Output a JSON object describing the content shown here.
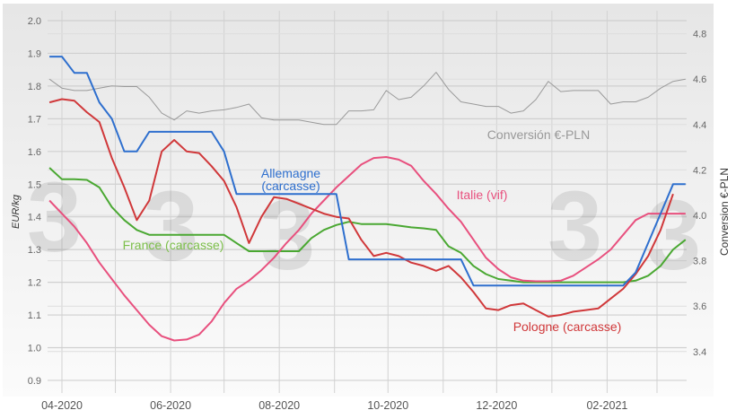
{
  "chart_data": {
    "type": "line",
    "x_tick_labels": [
      "04-2020",
      "06-2020",
      "08-2020",
      "10-2020",
      "12-2020",
      "02-2021"
    ],
    "x_tick_dates": [
      "2020-04-01",
      "2020-06-01",
      "2020-08-01",
      "2020-10-01",
      "2020-12-01",
      "2021-02-01"
    ],
    "y_left": {
      "label": "EUR/kg",
      "ticks": [
        "0.9",
        "1.0",
        "1.1",
        "1.2",
        "1.3",
        "1.4",
        "1.5",
        "1.6",
        "1.7",
        "1.8",
        "1.9",
        "2.0"
      ],
      "ylim": [
        0.86,
        2.03
      ]
    },
    "y_right": {
      "label": "Conversion €-PLN",
      "ticks": [
        "3.4",
        "3.6",
        "3.8",
        "4.0",
        "4.2",
        "4.4",
        "4.6",
        "4.8"
      ],
      "ylim": [
        3.22,
        4.9
      ]
    },
    "grid": true,
    "x": [
      "2020-03-25",
      "2020-04-01",
      "2020-04-08",
      "2020-04-15",
      "2020-04-22",
      "2020-04-29",
      "2020-05-06",
      "2020-05-13",
      "2020-05-20",
      "2020-05-27",
      "2020-06-03",
      "2020-06-10",
      "2020-06-17",
      "2020-06-24",
      "2020-07-01",
      "2020-07-08",
      "2020-07-15",
      "2020-07-22",
      "2020-07-29",
      "2020-08-05",
      "2020-08-12",
      "2020-08-19",
      "2020-08-26",
      "2020-09-02",
      "2020-09-09",
      "2020-09-16",
      "2020-09-23",
      "2020-09-30",
      "2020-10-07",
      "2020-10-14",
      "2020-10-21",
      "2020-10-28",
      "2020-11-04",
      "2020-11-11",
      "2020-11-18",
      "2020-11-25",
      "2020-12-02",
      "2020-12-09",
      "2020-12-16",
      "2020-12-23",
      "2020-12-30",
      "2021-01-06",
      "2021-01-13",
      "2021-01-20",
      "2021-01-27",
      "2021-02-03",
      "2021-02-10",
      "2021-02-17",
      "2021-02-24",
      "2021-03-03",
      "2021-03-10",
      "2021-03-17"
    ],
    "series": [
      {
        "name": "Conversión €-PLN",
        "axis": "right",
        "color": "#9a9a9a",
        "values": [
          4.6,
          4.56,
          4.55,
          4.55,
          4.56,
          4.57,
          4.567,
          4.567,
          4.52,
          4.45,
          4.42,
          4.46,
          4.45,
          4.46,
          4.465,
          4.475,
          4.49,
          4.43,
          4.42,
          4.42,
          4.42,
          4.41,
          4.4,
          4.4,
          4.46,
          4.46,
          4.465,
          4.55,
          4.51,
          4.52,
          4.57,
          4.63,
          4.555,
          4.5,
          4.49,
          4.48,
          4.48,
          4.45,
          4.46,
          4.51,
          4.59,
          4.545,
          4.55,
          4.55,
          4.55,
          4.49,
          4.5,
          4.5,
          4.52,
          4.56,
          4.59,
          4.6
        ]
      },
      {
        "name": "France (carcasse)",
        "axis": "left",
        "color": "#4aa832",
        "values": [
          1.55,
          1.515,
          1.515,
          1.513,
          1.49,
          1.43,
          1.39,
          1.36,
          1.345,
          1.345,
          1.345,
          1.345,
          1.345,
          1.345,
          1.345,
          1.32,
          1.295,
          1.295,
          1.295,
          1.295,
          1.295,
          1.335,
          1.36,
          1.375,
          1.385,
          1.378,
          1.378,
          1.378,
          1.373,
          1.368,
          1.365,
          1.36,
          1.31,
          1.29,
          1.25,
          1.225,
          1.21,
          1.205,
          1.2,
          1.2,
          1.2,
          1.2,
          1.2,
          1.2,
          1.2,
          1.2,
          1.2,
          1.205,
          1.22,
          1.25,
          1.3,
          1.33
        ]
      },
      {
        "name": "Italie (vif)",
        "axis": "left",
        "color": "#e8507e",
        "values": [
          1.45,
          1.41,
          1.37,
          1.32,
          1.26,
          1.21,
          1.16,
          1.115,
          1.07,
          1.035,
          1.022,
          1.025,
          1.04,
          1.08,
          1.136,
          1.18,
          1.205,
          1.237,
          1.275,
          1.32,
          1.36,
          1.41,
          1.45,
          1.49,
          1.525,
          1.56,
          1.58,
          1.583,
          1.575,
          1.556,
          1.51,
          1.47,
          1.425,
          1.385,
          1.33,
          1.275,
          1.24,
          1.215,
          1.205,
          1.203,
          1.203,
          1.205,
          1.22,
          1.245,
          1.27,
          1.3,
          1.345,
          1.39,
          1.41,
          1.41,
          1.41,
          1.41
        ]
      },
      {
        "name": "Pologne (carcasse)",
        "axis": "left",
        "color": "#d0383a",
        "values": [
          1.75,
          1.76,
          1.755,
          1.72,
          1.69,
          1.58,
          1.49,
          1.39,
          1.45,
          1.6,
          1.635,
          1.6,
          1.595,
          1.555,
          1.51,
          1.43,
          1.32,
          1.4,
          1.46,
          1.455,
          1.44,
          1.425,
          1.41,
          1.4,
          1.395,
          1.33,
          1.28,
          1.29,
          1.28,
          1.26,
          1.25,
          1.235,
          1.25,
          1.215,
          1.17,
          1.12,
          1.115,
          1.13,
          1.135,
          1.115,
          1.095,
          1.1,
          1.11,
          1.115,
          1.12,
          1.15,
          1.18,
          1.225,
          1.28,
          1.36,
          1.47,
          null
        ]
      },
      {
        "name": "Allemagne (carcasse)",
        "axis": "left",
        "color": "#2e6fce",
        "values": [
          1.89,
          1.89,
          1.84,
          1.84,
          1.75,
          1.7,
          1.6,
          1.6,
          1.66,
          1.66,
          1.66,
          1.66,
          1.66,
          1.66,
          1.6,
          1.47,
          1.47,
          1.47,
          1.47,
          1.47,
          1.47,
          1.47,
          1.47,
          1.47,
          1.27,
          1.27,
          1.27,
          1.27,
          1.27,
          1.27,
          1.27,
          1.27,
          1.27,
          1.27,
          1.19,
          1.19,
          1.19,
          1.19,
          1.19,
          1.19,
          1.19,
          1.19,
          1.19,
          1.19,
          1.19,
          1.19,
          1.19,
          1.23,
          1.32,
          1.41,
          1.5,
          1.5
        ]
      }
    ],
    "annotations": {
      "allemagne_line1": "Allemagne",
      "allemagne_line2": "(carcasse)",
      "italie": "Italie (vif)",
      "france": "France (carcasse)",
      "pologne": "Pologne (carcasse)",
      "conversion": "Conversión €-PLN"
    }
  }
}
